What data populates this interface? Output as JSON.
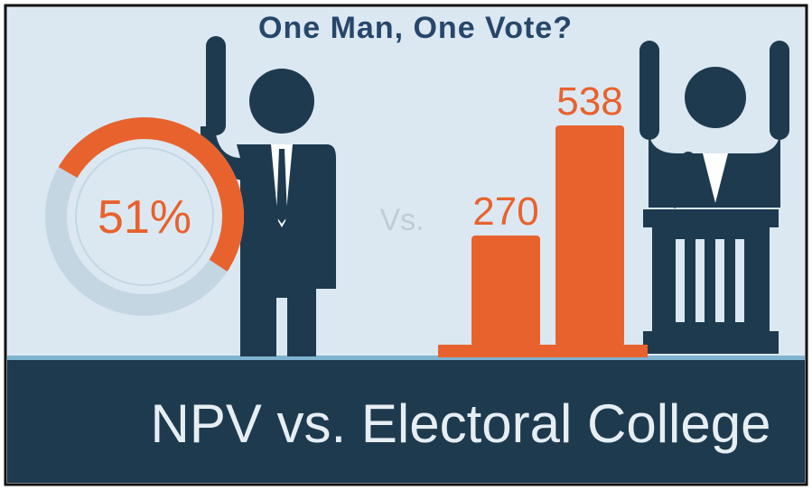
{
  "title": "One Man, One Vote?",
  "donut": {
    "value": 51,
    "label": "51%"
  },
  "vs": "Vs.",
  "bars": [
    270,
    538
  ],
  "footer": "NPV vs. Electoral College"
}
